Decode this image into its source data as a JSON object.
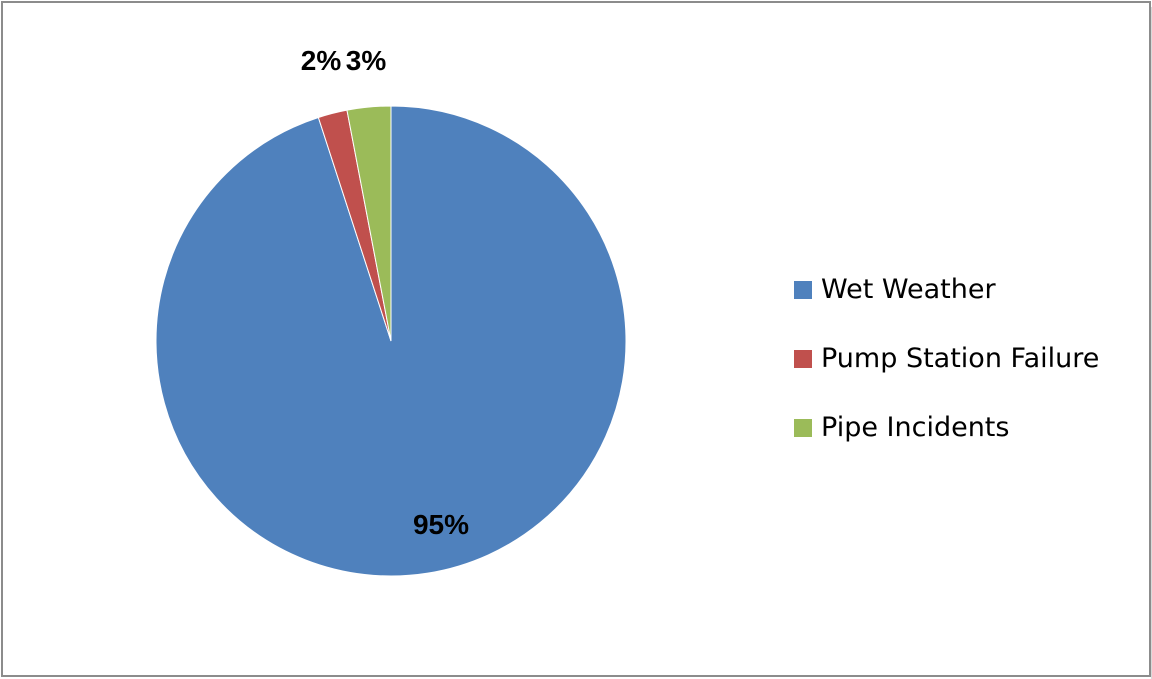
{
  "chart_data": {
    "type": "pie",
    "title": "",
    "start_angle_deg": 0,
    "direction": "clockwise",
    "slices": [
      {
        "name": "Wet Weather",
        "value": 95,
        "label": "95%",
        "color": "#4F81BD"
      },
      {
        "name": "Pump Station Failure",
        "value": 2,
        "label": "2%",
        "color": "#C0504D"
      },
      {
        "name": "Pipe Incidents",
        "value": 3,
        "label": "3%",
        "color": "#9BBB59"
      }
    ],
    "legend_position": "right"
  }
}
